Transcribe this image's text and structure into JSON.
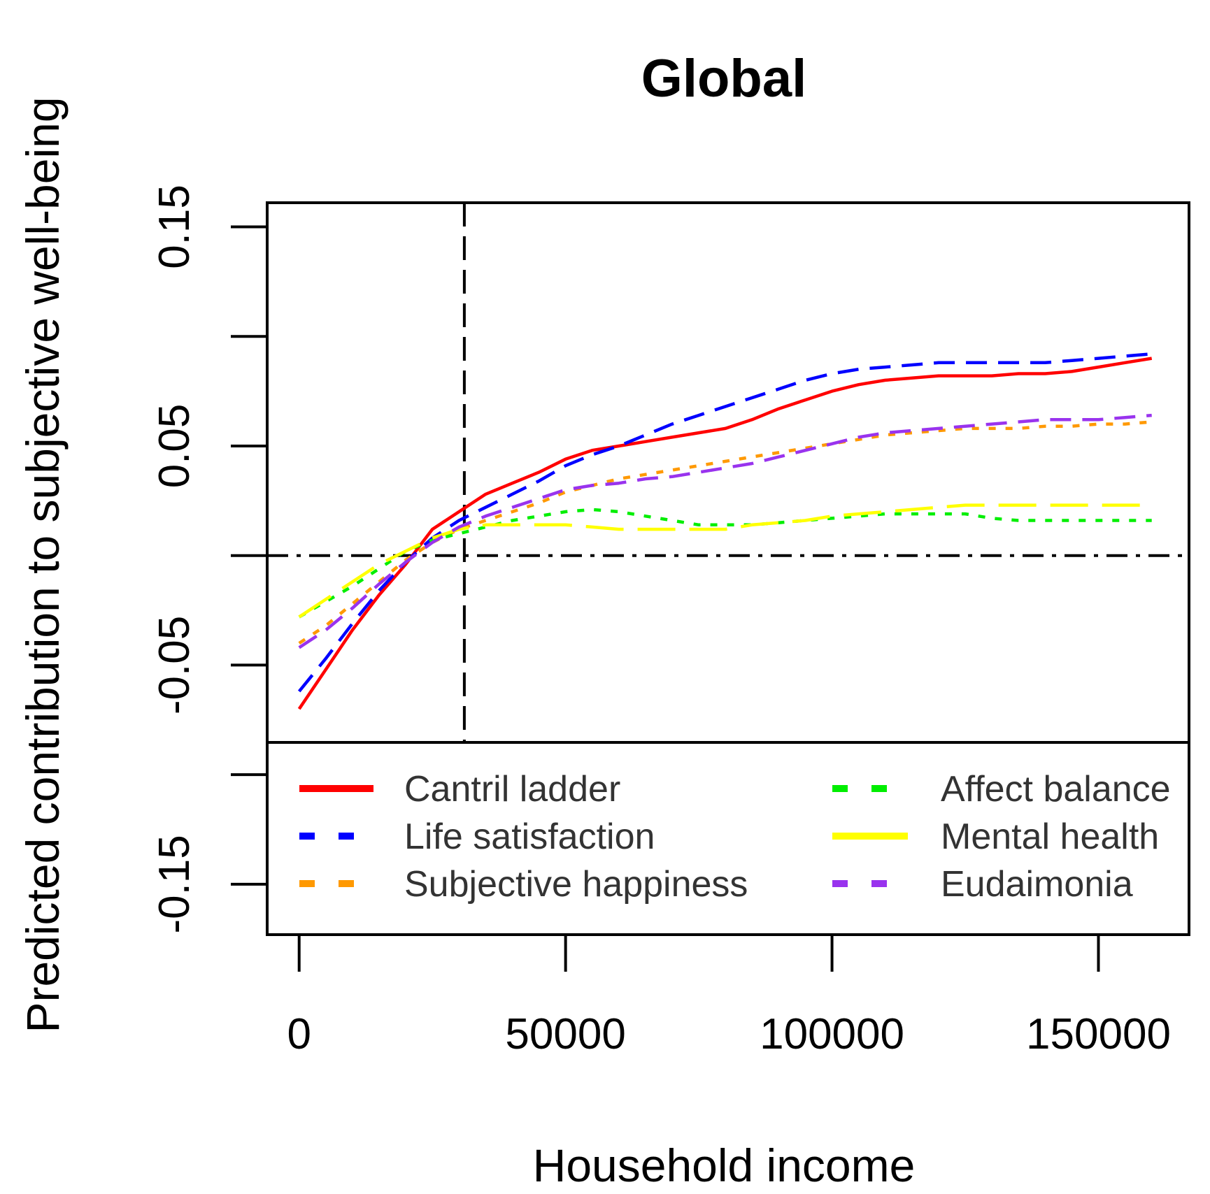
{
  "chart_data": {
    "type": "line",
    "title": "Global",
    "xlabel": "Household income",
    "ylabel": "Predicted contribution to subjective well-being",
    "xlim": [
      -6000,
      167000
    ],
    "ylim": [
      -0.173,
      0.161
    ],
    "x_ticks": [
      0,
      50000,
      100000,
      150000
    ],
    "y_ticks": [
      -0.15,
      -0.1,
      -0.05,
      0,
      0.05,
      0.1,
      0.15
    ],
    "y_tick_labels": [
      "-0.15",
      "",
      "-0.05",
      "",
      "0.05",
      "",
      "0.15"
    ],
    "reference_lines": {
      "horizontal_y": 0,
      "vertical_x": 31000
    },
    "legend_position": "bottom",
    "series": [
      {
        "name": "Cantril ladder",
        "color": "#ff0000",
        "dash": "solid",
        "x": [
          0,
          5000,
          10000,
          15000,
          20000,
          25000,
          30000,
          35000,
          40000,
          45000,
          50000,
          55000,
          60000,
          65000,
          70000,
          75000,
          80000,
          85000,
          90000,
          95000,
          100000,
          105000,
          110000,
          115000,
          120000,
          125000,
          130000,
          135000,
          140000,
          145000,
          150000,
          155000,
          160000
        ],
        "y": [
          -0.07,
          -0.052,
          -0.034,
          -0.018,
          -0.004,
          0.012,
          0.02,
          0.028,
          0.033,
          0.038,
          0.044,
          0.048,
          0.05,
          0.052,
          0.054,
          0.056,
          0.058,
          0.062,
          0.067,
          0.071,
          0.075,
          0.078,
          0.08,
          0.081,
          0.082,
          0.082,
          0.082,
          0.083,
          0.083,
          0.084,
          0.086,
          0.088,
          0.09
        ]
      },
      {
        "name": "Life satisfaction",
        "color": "#0000ff",
        "dash": "dashed",
        "x": [
          0,
          5000,
          10000,
          15000,
          20000,
          25000,
          30000,
          35000,
          40000,
          45000,
          50000,
          55000,
          60000,
          65000,
          70000,
          75000,
          80000,
          85000,
          90000,
          95000,
          100000,
          105000,
          110000,
          115000,
          120000,
          125000,
          130000,
          135000,
          140000,
          145000,
          150000,
          155000,
          160000
        ],
        "y": [
          -0.062,
          -0.047,
          -0.031,
          -0.016,
          -0.003,
          0.008,
          0.016,
          0.022,
          0.028,
          0.034,
          0.041,
          0.046,
          0.05,
          0.055,
          0.06,
          0.064,
          0.068,
          0.072,
          0.076,
          0.08,
          0.083,
          0.085,
          0.086,
          0.087,
          0.088,
          0.088,
          0.088,
          0.088,
          0.088,
          0.089,
          0.09,
          0.091,
          0.092
        ]
      },
      {
        "name": "Subjective happiness",
        "color": "#ff9900",
        "dash": "dotted",
        "x": [
          0,
          5000,
          10000,
          15000,
          20000,
          25000,
          30000,
          35000,
          40000,
          45000,
          50000,
          55000,
          60000,
          65000,
          70000,
          75000,
          80000,
          85000,
          90000,
          95000,
          100000,
          105000,
          110000,
          115000,
          120000,
          125000,
          130000,
          135000,
          140000,
          145000,
          150000,
          155000,
          160000
        ],
        "y": [
          -0.04,
          -0.032,
          -0.022,
          -0.012,
          -0.002,
          0.006,
          0.012,
          0.016,
          0.02,
          0.024,
          0.029,
          0.032,
          0.035,
          0.037,
          0.039,
          0.041,
          0.043,
          0.045,
          0.047,
          0.049,
          0.051,
          0.053,
          0.055,
          0.056,
          0.057,
          0.058,
          0.058,
          0.058,
          0.059,
          0.059,
          0.06,
          0.06,
          0.061
        ]
      },
      {
        "name": "Affect balance",
        "color": "#00ee00",
        "dash": "dotted",
        "x": [
          0,
          5000,
          10000,
          15000,
          20000,
          25000,
          30000,
          35000,
          40000,
          45000,
          50000,
          55000,
          60000,
          65000,
          70000,
          75000,
          80000,
          85000,
          90000,
          95000,
          100000,
          105000,
          110000,
          115000,
          120000,
          125000,
          130000,
          135000,
          140000,
          145000,
          150000,
          155000,
          160000
        ],
        "y": [
          -0.028,
          -0.021,
          -0.014,
          -0.006,
          0.002,
          0.007,
          0.01,
          0.013,
          0.016,
          0.018,
          0.02,
          0.021,
          0.02,
          0.018,
          0.016,
          0.014,
          0.014,
          0.014,
          0.015,
          0.016,
          0.017,
          0.018,
          0.019,
          0.019,
          0.019,
          0.019,
          0.017,
          0.016,
          0.016,
          0.016,
          0.016,
          0.016,
          0.016
        ]
      },
      {
        "name": "Mental health",
        "color": "#ffff00",
        "dash": "long-dash",
        "x": [
          0,
          5000,
          10000,
          15000,
          20000,
          25000,
          30000,
          35000,
          40000,
          45000,
          50000,
          55000,
          60000,
          65000,
          70000,
          75000,
          80000,
          85000,
          90000,
          95000,
          100000,
          105000,
          110000,
          115000,
          120000,
          125000,
          130000,
          135000,
          140000,
          145000,
          150000,
          155000,
          160000
        ],
        "y": [
          -0.028,
          -0.02,
          -0.012,
          -0.004,
          0.002,
          0.008,
          0.012,
          0.014,
          0.014,
          0.014,
          0.014,
          0.013,
          0.012,
          0.012,
          0.012,
          0.012,
          0.012,
          0.014,
          0.015,
          0.016,
          0.018,
          0.019,
          0.02,
          0.021,
          0.022,
          0.023,
          0.023,
          0.023,
          0.023,
          0.023,
          0.023,
          0.023,
          0.023
        ]
      },
      {
        "name": "Eudaimonia",
        "color": "#9933ee",
        "dash": "dashed",
        "x": [
          0,
          5000,
          10000,
          15000,
          20000,
          25000,
          30000,
          35000,
          40000,
          45000,
          50000,
          55000,
          60000,
          65000,
          70000,
          75000,
          80000,
          85000,
          90000,
          95000,
          100000,
          105000,
          110000,
          115000,
          120000,
          125000,
          130000,
          135000,
          140000,
          145000,
          150000,
          155000,
          160000
        ],
        "y": [
          -0.042,
          -0.034,
          -0.024,
          -0.013,
          -0.003,
          0.006,
          0.013,
          0.018,
          0.022,
          0.026,
          0.03,
          0.032,
          0.033,
          0.035,
          0.036,
          0.038,
          0.04,
          0.042,
          0.045,
          0.048,
          0.051,
          0.054,
          0.056,
          0.057,
          0.058,
          0.059,
          0.06,
          0.061,
          0.062,
          0.062,
          0.062,
          0.063,
          0.064
        ]
      }
    ],
    "legend": {
      "columns": [
        [
          "Cantril ladder",
          "Life satisfaction",
          "Subjective happiness"
        ],
        [
          "Affect balance",
          "Mental health",
          "Eudaimonia"
        ]
      ]
    }
  }
}
